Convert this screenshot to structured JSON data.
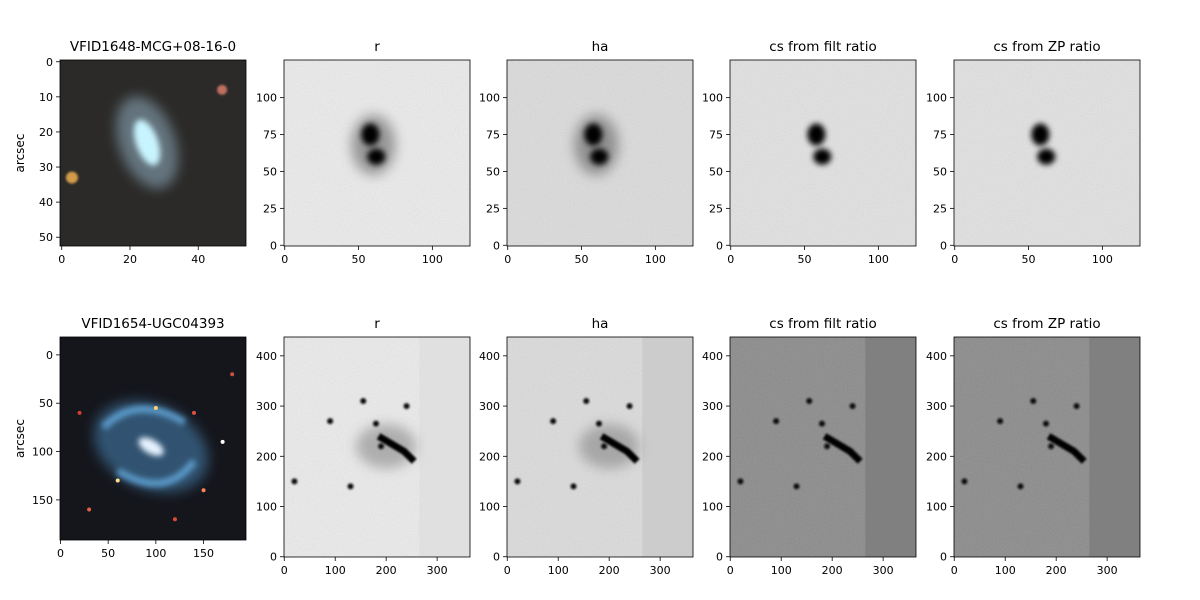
{
  "chart_data": [
    {
      "type": "image",
      "title": "VFID1648-MCG+08-16-0",
      "y_label": "arcsec",
      "xlim": [
        -0.5,
        54
      ],
      "ylim": [
        52.5,
        -0.5
      ],
      "xticks": [
        0,
        20,
        40
      ],
      "yticks": [
        0,
        10,
        20,
        30,
        40,
        50
      ]
    },
    {
      "type": "image",
      "title": "r",
      "xlim": [
        -0.5,
        125.5
      ],
      "ylim": [
        -0.5,
        125.5
      ],
      "xticks": [
        0,
        50,
        100
      ],
      "yticks": [
        0,
        25,
        50,
        75,
        100
      ]
    },
    {
      "type": "image",
      "title": "ha",
      "xlim": [
        -0.5,
        125.5
      ],
      "ylim": [
        -0.5,
        125.5
      ],
      "xticks": [
        0,
        50,
        100
      ],
      "yticks": [
        0,
        25,
        50,
        75,
        100
      ]
    },
    {
      "type": "image",
      "title": "cs from filt ratio",
      "xlim": [
        -0.5,
        125.5
      ],
      "ylim": [
        -0.5,
        125.5
      ],
      "xticks": [
        0,
        50,
        100
      ],
      "yticks": [
        0,
        25,
        50,
        75,
        100
      ]
    },
    {
      "type": "image",
      "title": "cs from ZP ratio",
      "xlim": [
        -0.5,
        125.5
      ],
      "ylim": [
        -0.5,
        125.5
      ],
      "xticks": [
        0,
        50,
        100
      ],
      "yticks": [
        0,
        25,
        50,
        75,
        100
      ]
    },
    {
      "type": "image",
      "title": "VFID1654-UGC04393",
      "y_label": "arcsec",
      "xlim": [
        -0.5,
        194.5
      ],
      "ylim": [
        191.5,
        -18.5
      ],
      "xticks": [
        0,
        50,
        100,
        150
      ],
      "yticks": [
        0,
        50,
        100,
        150
      ]
    },
    {
      "type": "image",
      "title": "r",
      "xlim": [
        -0.5,
        364.5
      ],
      "ylim": [
        -0.5,
        437.5
      ],
      "xticks": [
        0,
        100,
        200,
        300
      ],
      "yticks": [
        0,
        100,
        200,
        300,
        400
      ]
    },
    {
      "type": "image",
      "title": "ha",
      "xlim": [
        -0.5,
        364.5
      ],
      "ylim": [
        -0.5,
        437.5
      ],
      "xticks": [
        0,
        100,
        200,
        300
      ],
      "yticks": [
        0,
        100,
        200,
        300,
        400
      ]
    },
    {
      "type": "image",
      "title": "cs from filt ratio",
      "xlim": [
        -0.5,
        364.5
      ],
      "ylim": [
        -0.5,
        437.5
      ],
      "xticks": [
        0,
        100,
        200,
        300
      ],
      "yticks": [
        0,
        100,
        200,
        300,
        400
      ]
    },
    {
      "type": "image",
      "title": "cs from ZP ratio",
      "xlim": [
        -0.5,
        364.5
      ],
      "ylim": [
        -0.5,
        437.5
      ],
      "xticks": [
        0,
        100,
        200,
        300
      ],
      "yticks": [
        0,
        100,
        200,
        300,
        400
      ]
    }
  ]
}
